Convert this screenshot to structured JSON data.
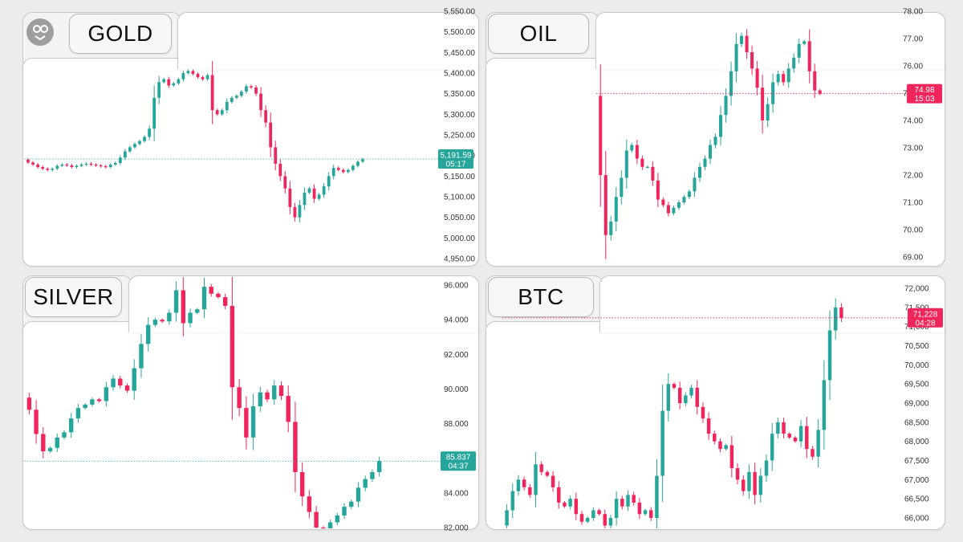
{
  "colors": {
    "up": "#26a69a",
    "down": "#f0255c",
    "up_vol": "#9ddcd6",
    "down_vol": "#f7b3bd"
  },
  "charts": [
    {
      "id": "gold",
      "title": "GOLD",
      "current": {
        "price": "5,191.59",
        "timer": "05:17",
        "value": 5191.59,
        "color": "up"
      },
      "chart_data": {
        "type": "candlestick",
        "title": "GOLD",
        "y_ticks": [
          "5,550.00",
          "5,500.00",
          "5,450.00",
          "5,400.00",
          "5,350.00",
          "5,300.00",
          "5,250.00",
          "5,200.00",
          "5,150.00",
          "5,100.00",
          "5,050.00",
          "5,000.00",
          "4,950.00"
        ],
        "ylim": [
          4940,
          5560
        ],
        "path": [
          5190,
          5183,
          5178,
          5172,
          5168,
          5165,
          5168,
          5175,
          5178,
          5176,
          5172,
          5175,
          5178,
          5180,
          5178,
          5176,
          5174,
          5172,
          5178,
          5182,
          5195,
          5210,
          5220,
          5228,
          5235,
          5245,
          5265,
          5340,
          5378,
          5385,
          5370,
          5375,
          5385,
          5400,
          5405,
          5398,
          5390,
          5385,
          5395,
          5310,
          5300,
          5310,
          5330,
          5340,
          5345,
          5355,
          5368,
          5365,
          5350,
          5310,
          5280,
          5220,
          5180,
          5150,
          5120,
          5075,
          5050,
          5080,
          5110,
          5120,
          5095,
          5105,
          5125,
          5150,
          5170,
          5165,
          5160,
          5165,
          5175,
          5185,
          5191
        ],
        "volume": [
          0,
          0,
          0,
          0,
          0,
          0,
          0,
          0,
          0,
          0,
          0,
          0,
          0,
          0,
          0,
          0,
          0,
          0,
          0,
          0,
          0,
          0,
          0,
          0,
          0,
          0,
          0,
          0,
          0,
          0,
          0,
          0,
          0,
          0,
          0,
          0,
          0,
          0,
          0,
          0,
          0,
          0,
          0,
          0,
          0,
          0,
          0,
          0,
          0,
          0,
          0,
          0,
          0,
          0,
          0,
          0,
          0,
          0,
          0,
          0,
          0,
          0,
          0,
          0,
          0,
          0,
          0,
          0,
          0,
          0,
          0
        ]
      }
    },
    {
      "id": "oil",
      "title": "OIL",
      "current": {
        "price": "74.98",
        "timer": "15:03",
        "value": 74.98,
        "color": "down"
      },
      "chart_data": {
        "type": "candlestick",
        "title": "OIL",
        "y_ticks": [
          "78.00",
          "77.00",
          "76.00",
          "75.00",
          "74.00",
          "73.00",
          "72.00",
          "71.00",
          "70.00",
          "69.00"
        ],
        "ylim": [
          68.5,
          78.5
        ],
        "path": [
          74.9,
          72.0,
          69.8,
          70.3,
          71.2,
          71.9,
          72.9,
          73.1,
          72.6,
          72.3,
          72.3,
          71.8,
          71.1,
          70.9,
          70.6,
          70.8,
          71.0,
          71.2,
          71.4,
          71.9,
          72.3,
          72.6,
          73.1,
          73.4,
          74.2,
          74.9,
          75.8,
          76.8,
          77.1,
          76.5,
          75.9,
          75.2,
          74.0,
          74.6,
          75.4,
          75.7,
          75.4,
          75.9,
          76.3,
          76.8,
          76.9,
          75.8,
          75.1,
          74.98
        ]
      }
    },
    {
      "id": "silver",
      "title": "SILVER",
      "current": {
        "price": "85.837",
        "timer": "04:37",
        "value": 85.837,
        "color": "up"
      },
      "chart_data": {
        "type": "candlestick",
        "title": "SILVER",
        "y_ticks": [
          "96.000",
          "94.000",
          "92.000",
          "90.000",
          "88.000",
          "86.000",
          "84.000",
          "82.000"
        ],
        "ylim": [
          81.5,
          96.5
        ],
        "path": [
          89.5,
          88.8,
          87.4,
          86.4,
          86.6,
          87.2,
          87.5,
          88.3,
          88.9,
          89.1,
          89.4,
          89.3,
          90.1,
          90.6,
          90.2,
          89.9,
          91.2,
          92.6,
          93.7,
          94.0,
          93.9,
          94.4,
          95.7,
          93.8,
          94.4,
          94.6,
          95.9,
          95.5,
          95.3,
          94.8,
          90.1,
          88.9,
          87.2,
          89.0,
          89.8,
          89.4,
          90.2,
          89.6,
          88.1,
          85.2,
          83.8,
          82.9,
          82.0,
          81.9,
          82.3,
          82.7,
          83.2,
          83.5,
          84.3,
          84.8,
          85.2,
          85.837
        ]
      }
    },
    {
      "id": "btc",
      "title": "BTC",
      "current": {
        "price": "71,228",
        "timer": "04:28",
        "value": 71228,
        "color": "down"
      },
      "chart_data": {
        "type": "candlestick",
        "title": "BTC",
        "y_ticks": [
          "72,000",
          "71,500",
          "71,000",
          "70,500",
          "70,000",
          "69,500",
          "69,000",
          "68,500",
          "68,000",
          "67,500",
          "67,000",
          "66,500",
          "66,000"
        ],
        "ylim": [
          65800,
          72200
        ],
        "path": [
          65800,
          66200,
          66700,
          67000,
          66800,
          66600,
          67400,
          67200,
          67100,
          66800,
          66400,
          66300,
          66500,
          66100,
          65900,
          66000,
          66200,
          66100,
          65800,
          66000,
          66500,
          66300,
          66600,
          66400,
          66100,
          66200,
          66000,
          67100,
          68800,
          69500,
          69400,
          69000,
          69200,
          69400,
          68900,
          68600,
          68200,
          68000,
          67800,
          67900,
          67300,
          67000,
          66700,
          67200,
          66600,
          67100,
          67500,
          68200,
          68500,
          68200,
          68100,
          68000,
          68400,
          67800,
          67600,
          68300,
          69600,
          70900,
          71500,
          71228
        ]
      }
    }
  ]
}
